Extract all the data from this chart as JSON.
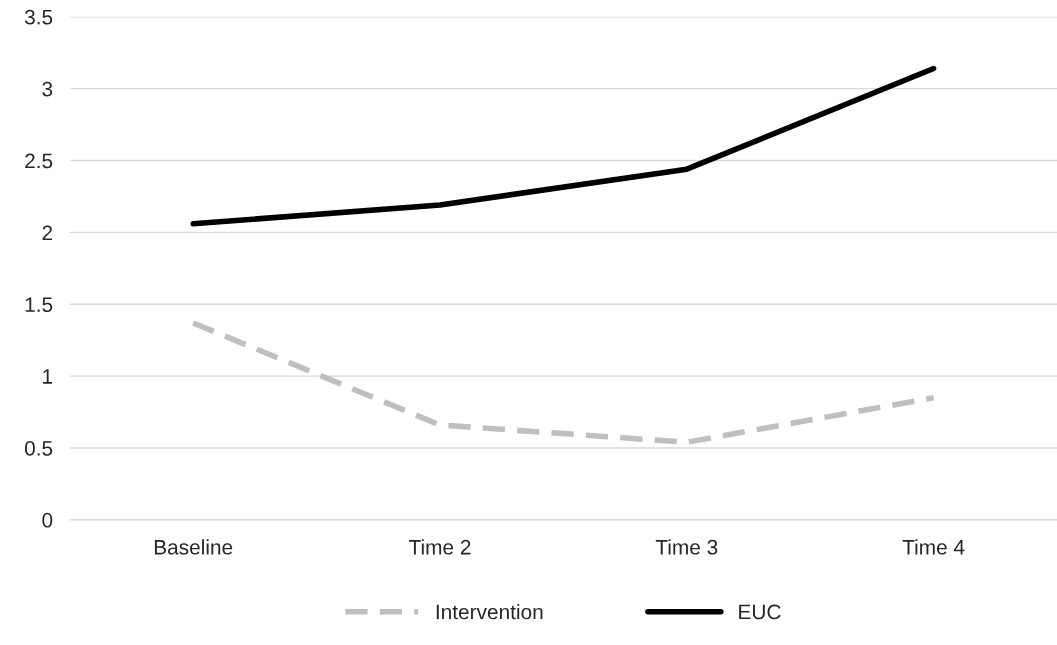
{
  "chart_data": {
    "type": "line",
    "categories": [
      "Baseline",
      "Time 2",
      "Time 3",
      "Time 4"
    ],
    "series": [
      {
        "name": "Intervention",
        "color": "#bfbfbf",
        "line_style": "dashed",
        "values": [
          1.37,
          0.66,
          0.54,
          0.85
        ]
      },
      {
        "name": "EUC",
        "color": "#000000",
        "line_style": "solid",
        "values": [
          2.06,
          2.19,
          2.44,
          3.14
        ]
      }
    ],
    "ylim": [
      0,
      3.5
    ],
    "yticks": [
      0,
      {
        "value": 0.5,
        "label": "0.5"
      },
      1,
      {
        "value": 1.5,
        "label": "1.5"
      },
      2,
      {
        "value": 2.5,
        "label": "2.5"
      },
      3,
      {
        "value": 3.5,
        "label": "3.5"
      }
    ],
    "grid": "y",
    "legend": "bottom",
    "marker": "none"
  }
}
